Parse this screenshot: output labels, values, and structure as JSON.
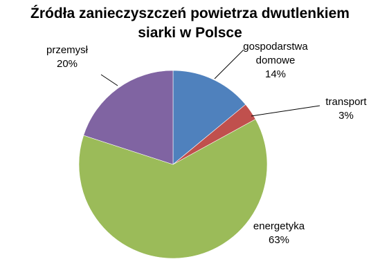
{
  "chart_data": {
    "type": "pie",
    "title_lines": [
      "Źródła zanieczyszczeń powietrza dwutlenkiem",
      "siarki w Polsce"
    ],
    "legend": "none",
    "slices": [
      {
        "label_lines": [
          "gospodarstwa",
          "domowe"
        ],
        "value": 14,
        "percent_label": "14%",
        "color": "#4f81bd"
      },
      {
        "label_lines": [
          "transport"
        ],
        "value": 3,
        "percent_label": "3%",
        "color": "#c0504d"
      },
      {
        "label_lines": [
          "energetyka"
        ],
        "value": 63,
        "percent_label": "63%",
        "color": "#9bbb59"
      },
      {
        "label_lines": [
          "przemysł"
        ],
        "value": 20,
        "percent_label": "20%",
        "color": "#8064a2"
      }
    ]
  }
}
